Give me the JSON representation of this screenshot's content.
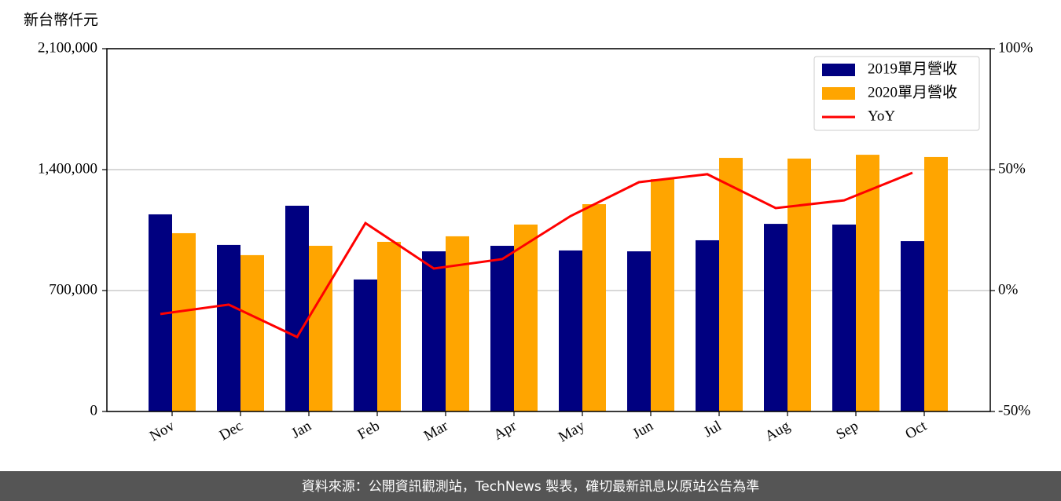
{
  "chart_data": {
    "type": "bar",
    "y_label": "新台幣仟元",
    "categories": [
      "Nov",
      "Dec",
      "Jan",
      "Feb",
      "Mar",
      "Apr",
      "May",
      "Jun",
      "Jul",
      "Aug",
      "Sep",
      "Oct"
    ],
    "series": [
      {
        "name": "2019單月營收",
        "color": "#000080",
        "values": [
          1141000,
          964000,
          1191000,
          764000,
          927000,
          959000,
          932000,
          927000,
          991000,
          1086000,
          1082000,
          986000
        ]
      },
      {
        "name": "2020單月營收",
        "color": "#ffa500",
        "values": [
          1032000,
          905000,
          959000,
          982000,
          1014000,
          1082000,
          1200000,
          1345000,
          1468000,
          1464000,
          1486000,
          1473000
        ]
      },
      {
        "name": "YoY",
        "color": "#ff0000",
        "type": "line",
        "axis": "y2",
        "values": [
          -9.7,
          -5.8,
          -19.2,
          27.9,
          9.1,
          13.0,
          30.8,
          44.8,
          48.1,
          34.1,
          37.3,
          48.7
        ]
      }
    ],
    "ylim": [
      0,
      2100000
    ],
    "yticks": [
      0,
      {
        "value": 700000,
        "label": "700,000"
      },
      {
        "value": 1400000,
        "label": "1,400,000"
      },
      {
        "value": 2100000,
        "label": "2,100,000"
      }
    ],
    "y2lim": [
      -50,
      100
    ],
    "y2ticks": [
      {
        "value": -50,
        "label": "-50%"
      },
      {
        "value": 0,
        "label": "0%"
      },
      {
        "value": 50,
        "label": "50%"
      },
      {
        "value": 100,
        "label": "100%"
      }
    ],
    "grid": true,
    "legend": "upper right"
  },
  "footer": "資料來源：公開資訊觀測站，TechNews 製表，確切最新訊息以原站公告為準"
}
